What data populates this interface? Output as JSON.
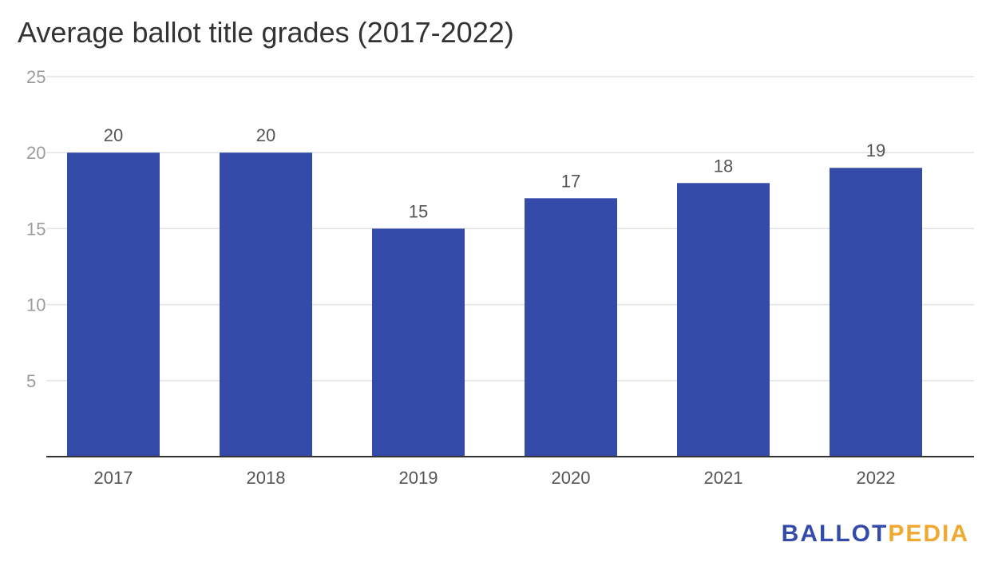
{
  "chart_data": {
    "type": "bar",
    "title": "Average ballot title grades (2017-2022)",
    "categories": [
      "2017",
      "2018",
      "2019",
      "2020",
      "2021",
      "2022"
    ],
    "values": [
      20,
      20,
      15,
      17,
      18,
      19
    ],
    "data_labels": [
      "20",
      "20",
      "15",
      "17",
      "18",
      "19"
    ],
    "ylim": [
      0,
      25
    ],
    "yticks": [
      5,
      10,
      15,
      20,
      25
    ],
    "grid": true,
    "colors": {
      "bar": "#344ba9",
      "grid": "#e3e3e3",
      "axis": "#333333"
    }
  },
  "logo": {
    "part1": "BALLOT",
    "part2": "PEDIA",
    "color1": "#344ba9",
    "color2": "#f0a830"
  }
}
